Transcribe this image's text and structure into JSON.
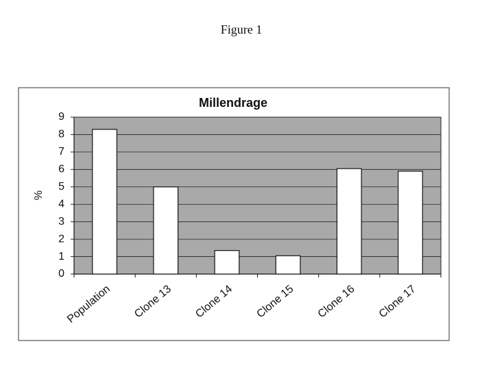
{
  "page_title": "Figure 1",
  "chart_data": {
    "type": "bar",
    "title": "Millendrage",
    "y_label": "%",
    "categories": [
      "Population",
      "Clone 13",
      "Clone 14",
      "Clone 15",
      "Clone 16",
      "Clone 17"
    ],
    "values": [
      8.3,
      5.0,
      1.35,
      1.05,
      6.05,
      5.9
    ],
    "color": "#ffffff",
    "plot_background": "#a9a9a9",
    "ylim": [
      0,
      9
    ],
    "yticks": [
      0,
      1,
      2,
      3,
      4,
      5,
      6,
      7,
      8,
      9
    ],
    "grid": true
  }
}
